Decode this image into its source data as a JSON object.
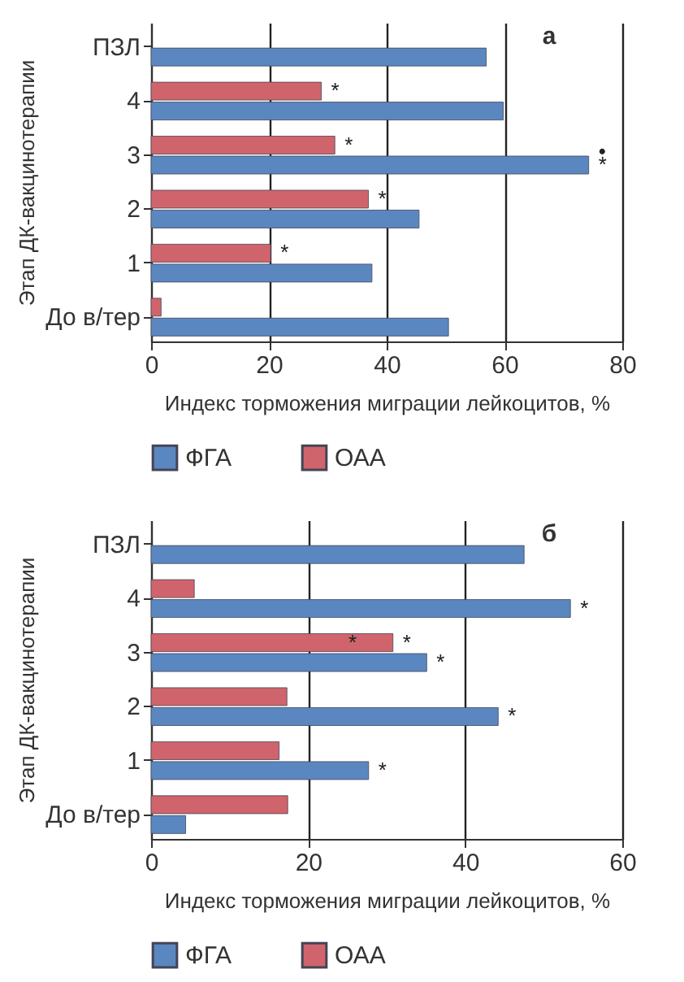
{
  "chart_data": [
    {
      "type": "bar",
      "orientation": "horizontal",
      "title": "а",
      "xlabel": "Индекс торможения миграции лейкоцитов, %",
      "ylabel": "Этап ДК-вакцинотерапии",
      "categories": [
        "ПЗЛ",
        "4",
        "3",
        "2",
        "1",
        "До в/тер"
      ],
      "series": [
        {
          "name": "ФГА",
          "color": "#5a87c0",
          "values": [
            56.9,
            59.8,
            74.3,
            45.5,
            37.5,
            50.5
          ]
        },
        {
          "name": "ОАА",
          "color": "#d0646c",
          "values": [
            null,
            28.9,
            31.2,
            36.9,
            20.3,
            1.7
          ]
        }
      ],
      "xlim": [
        0,
        80
      ],
      "xticks": [
        0,
        20,
        40,
        60,
        80
      ],
      "grid": "x",
      "legend": "bottom",
      "annotations": [
        {
          "text": "*",
          "x": 28.9,
          "y": "4"
        },
        {
          "text": "*",
          "x": 31.2,
          "y": "3"
        },
        {
          "text": "*",
          "x": 74.3,
          "y": "3"
        },
        {
          "text": "•",
          "x": 74.3,
          "y": "3"
        },
        {
          "text": "*",
          "x": 36.9,
          "y": "2"
        },
        {
          "text": "*",
          "x": 20.3,
          "y": "1"
        }
      ]
    },
    {
      "type": "bar",
      "orientation": "horizontal",
      "title": "б",
      "xlabel": "Индекс торможения миграции лейкоцитов, %",
      "ylabel": "Этап ДК-вакцинотерапии",
      "categories": [
        "ПЗЛ",
        "4",
        "3",
        "2",
        "1",
        "До в/тер"
      ],
      "series": [
        {
          "name": "ФГА",
          "color": "#5a87c0",
          "values": [
            47.5,
            53.4,
            35.1,
            44.2,
            27.7,
            4.4
          ]
        },
        {
          "name": "ОАА",
          "color": "#d0646c",
          "values": [
            null,
            5.5,
            30.8,
            17.3,
            16.3,
            17.4
          ]
        }
      ],
      "xlim": [
        0,
        60
      ],
      "xticks": [
        0,
        20,
        40,
        60
      ],
      "grid": "x",
      "legend": "bottom",
      "annotations": [
        {
          "text": "*",
          "x": 53.4,
          "y": "4"
        },
        {
          "text": "*",
          "x": 23.9,
          "y": "3"
        },
        {
          "text": "*",
          "x": 30.8,
          "y": "3"
        },
        {
          "text": "*",
          "x": 35.1,
          "y": "3"
        },
        {
          "text": "*",
          "x": 44.2,
          "y": "2"
        },
        {
          "text": "*",
          "x": 27.7,
          "y": "1"
        }
      ]
    }
  ]
}
